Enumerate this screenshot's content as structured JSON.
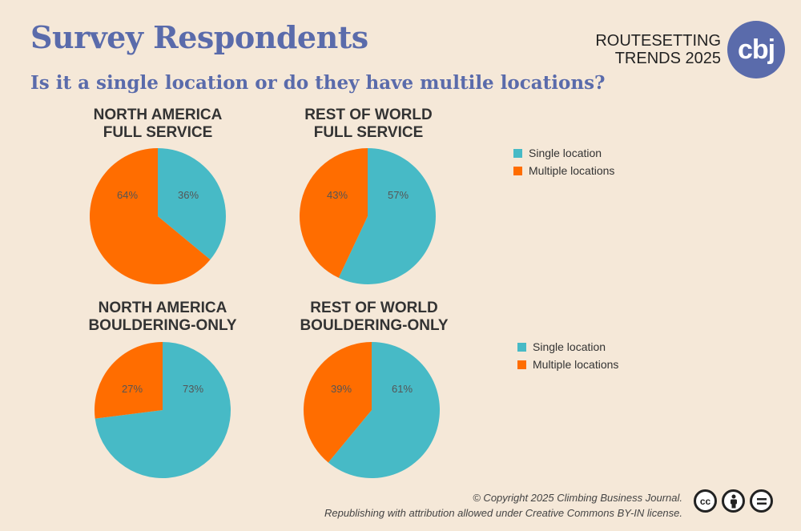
{
  "header": {
    "title": "Survey Respondents",
    "subtitle": "Is it a single location or do they have multile locations?",
    "brand_line1": "ROUTESETTING",
    "brand_line2": "TRENDS 2025",
    "brand_logo": "cbj"
  },
  "colors": {
    "single": "#47bac6",
    "multiple": "#ff6d00",
    "title": "#5a6bab",
    "background": "#f5e8d8"
  },
  "legend": {
    "single_label": "Single location",
    "multiple_label": "Multiple locations"
  },
  "chart_data": [
    {
      "type": "pie",
      "title_line1": "NORTH AMERICA",
      "title_line2": "FULL SERVICE",
      "slices": [
        {
          "label": "Single location",
          "value": 36,
          "text": "36%"
        },
        {
          "label": "Multiple locations",
          "value": 64,
          "text": "64%"
        }
      ]
    },
    {
      "type": "pie",
      "title_line1": "REST OF WORLD",
      "title_line2": "FULL SERVICE",
      "slices": [
        {
          "label": "Single location",
          "value": 57,
          "text": "57%"
        },
        {
          "label": "Multiple locations",
          "value": 43,
          "text": "43%"
        }
      ]
    },
    {
      "type": "pie",
      "title_line1": "NORTH AMERICA",
      "title_line2": "BOULDERING-ONLY",
      "slices": [
        {
          "label": "Single location",
          "value": 73,
          "text": "73%"
        },
        {
          "label": "Multiple locations",
          "value": 27,
          "text": "27%"
        }
      ]
    },
    {
      "type": "pie",
      "title_line1": "REST OF WORLD",
      "title_line2": "BOULDERING-ONLY",
      "slices": [
        {
          "label": "Single location",
          "value": 61,
          "text": "61%"
        },
        {
          "label": "Multiple locations",
          "value": 39,
          "text": "39%"
        }
      ]
    }
  ],
  "footer": {
    "line1": "© Copyright 2025 Climbing Business Journal.",
    "line2": "Republishing with attribution allowed under Creative Commons BY-IN license.",
    "icons": [
      "cc-icon",
      "attribution-icon",
      "no-derivatives-icon"
    ]
  }
}
